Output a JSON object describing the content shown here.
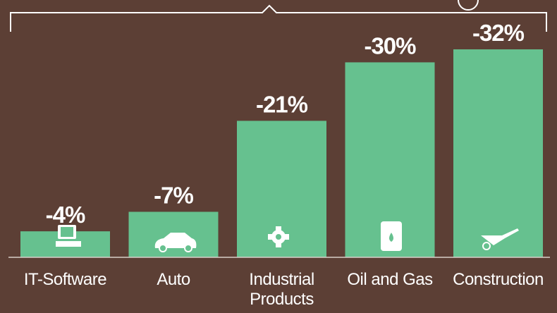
{
  "chart_data": {
    "type": "bar",
    "categories": [
      "IT-Software",
      "Auto",
      "Industrial Products",
      "Oil and Gas",
      "Construction"
    ],
    "values": [
      -4,
      -7,
      -21,
      -30,
      -32
    ],
    "value_labels": [
      "-4%",
      "-7%",
      "-21%",
      "-30%",
      "-32%"
    ],
    "color": "#66c18f",
    "ylim": [
      0,
      -32
    ]
  }
}
